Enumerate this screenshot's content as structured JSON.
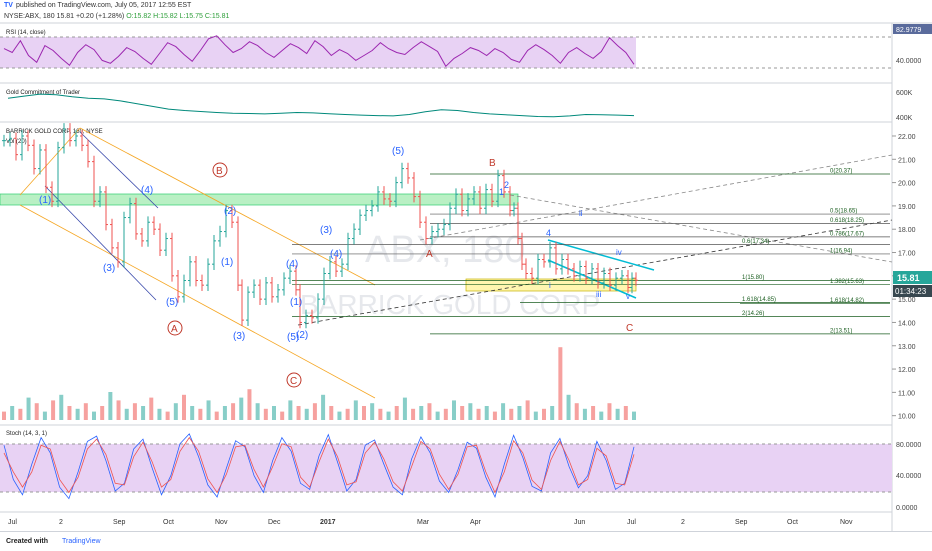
{
  "header": {
    "publish_text": "published on TradingView.com, July 05, 2017 12:55 EST",
    "symbol": "NYSE:ABX, 180",
    "change": "15.81 +0.20 (+1.28%)",
    "ohlc": "O:15.82 H:15.82 L:15.75 C:15.81"
  },
  "footer": {
    "created_with": "Created with",
    "brand": "TradingView"
  },
  "colors": {
    "rsi_fill": "#e8d2f4",
    "rsi_line": "#9c27b0",
    "cot_line": "#00897b",
    "wave_blue": "#2962ff",
    "wave_red": "#c0392b",
    "zone_green": "#b9f0c4",
    "zone_yellow": "#fff6b0",
    "fib_line": "#1b5e20",
    "channel_orange": "#f5a623",
    "channel_blue": "#3949ab",
    "cyan_line": "#00bcd4",
    "price_up": "#26a69a",
    "price_down": "#ef5350"
  },
  "chart_data": [
    {
      "type": "line",
      "title": "RSI (14, close)",
      "ylim": [
        30,
        85
      ],
      "y_ticks": [
        "82.9779",
        "40.0000"
      ],
      "series": [
        {
          "name": "RSI",
          "values": [
            62,
            58,
            70,
            55,
            48,
            65,
            60,
            52,
            45,
            58,
            66,
            61,
            50,
            47,
            54,
            63,
            59,
            52,
            46,
            57,
            68,
            64,
            56,
            49,
            60,
            72,
            75,
            66,
            58,
            62,
            69,
            65,
            58,
            53,
            60,
            67,
            63,
            57,
            70,
            64,
            55,
            61,
            57,
            50,
            55,
            60,
            68,
            62,
            58,
            56,
            63,
            69,
            64,
            59,
            44,
            52,
            57,
            63,
            60,
            55,
            62,
            58,
            51,
            48,
            60,
            66,
            61,
            55,
            47,
            58,
            63,
            57,
            52,
            59,
            73,
            65,
            58,
            46
          ]
        }
      ]
    },
    {
      "type": "line",
      "title": "Gold Commitment of Trader",
      "y_ticks": [
        "600K",
        "400K"
      ],
      "series": [
        {
          "name": "COT",
          "values": [
            560,
            575,
            590,
            585,
            570,
            560,
            555,
            540,
            520,
            500,
            480,
            470,
            462,
            455,
            450,
            448,
            445,
            450,
            455,
            452,
            446,
            440,
            436,
            432,
            430,
            440,
            460,
            475,
            470,
            455,
            445,
            438,
            432,
            426,
            424,
            430,
            440,
            438,
            436,
            432
          ]
        }
      ]
    },
    {
      "type": "line",
      "title": "BARRICK GOLD CORP, 180, NYSE",
      "subtitle": "Vol (20)",
      "ylim": [
        9.6,
        22.6
      ],
      "y_ticks": [
        "22.00",
        "21.00",
        "20.00",
        "19.00",
        "18.00",
        "17.00",
        "16.00",
        "15.00",
        "14.00",
        "13.00",
        "12.00",
        "11.00",
        "10.00"
      ],
      "last_price": "15.81",
      "countdown": "01:34:23",
      "watermark_symbol": "ABX, 180",
      "watermark_name": "BARRICK GOLD CORP",
      "x_labels": [
        "Jul",
        "2",
        "Sep",
        "Oct",
        "Nov",
        "Dec",
        "2017",
        "Mar",
        "Apr",
        "Jun",
        "Jul",
        "2",
        "Sep",
        "Oct",
        "Nov"
      ],
      "series": [
        {
          "name": "price",
          "values": [
            [
              0,
              21.8
            ],
            [
              6,
              21.9
            ],
            [
              12,
              21.2
            ],
            [
              18,
              22.0
            ],
            [
              24,
              21.6
            ],
            [
              30,
              20.6
            ],
            [
              36,
              21.4
            ],
            [
              42,
              19.8
            ],
            [
              48,
              19.2
            ],
            [
              54,
              21.5
            ],
            [
              60,
              22.3
            ],
            [
              66,
              21.8
            ],
            [
              72,
              22.0
            ],
            [
              78,
              21.6
            ],
            [
              84,
              20.9
            ],
            [
              90,
              19.2
            ],
            [
              96,
              19.6
            ],
            [
              102,
              18.2
            ],
            [
              108,
              17.2
            ],
            [
              114,
              16.6
            ],
            [
              120,
              18.5
            ],
            [
              126,
              19.1
            ],
            [
              132,
              17.8
            ],
            [
              138,
              17.5
            ],
            [
              144,
              18.3
            ],
            [
              150,
              18.0
            ],
            [
              156,
              17.1
            ],
            [
              162,
              17.6
            ],
            [
              168,
              16.0
            ],
            [
              174,
              15.1
            ],
            [
              180,
              15.8
            ],
            [
              186,
              16.6
            ],
            [
              192,
              15.8
            ],
            [
              198,
              15.6
            ],
            [
              204,
              16.5
            ],
            [
              210,
              17.5
            ],
            [
              216,
              17.9
            ],
            [
              222,
              18.8
            ],
            [
              228,
              18.3
            ],
            [
              234,
              15.6
            ],
            [
              238,
              14.1
            ],
            [
              244,
              15.3
            ],
            [
              250,
              15.6
            ],
            [
              256,
              15.0
            ],
            [
              262,
              15.7
            ],
            [
              268,
              15.1
            ],
            [
              274,
              15.4
            ],
            [
              280,
              15.9
            ],
            [
              286,
              16.2
            ],
            [
              292,
              15.4
            ],
            [
              296,
              14.0
            ],
            [
              302,
              14.3
            ],
            [
              308,
              14.2
            ],
            [
              314,
              15.0
            ],
            [
              320,
              16.1
            ],
            [
              326,
              16.6
            ],
            [
              332,
              16.2
            ],
            [
              338,
              16.5
            ],
            [
              344,
              17.6
            ],
            [
              350,
              18.0
            ],
            [
              356,
              18.6
            ],
            [
              362,
              18.8
            ],
            [
              368,
              19.0
            ],
            [
              374,
              19.6
            ],
            [
              380,
              19.3
            ],
            [
              386,
              19.2
            ],
            [
              392,
              20.0
            ],
            [
              398,
              20.6
            ],
            [
              404,
              20.2
            ],
            [
              410,
              19.4
            ],
            [
              416,
              18.3
            ],
            [
              422,
              17.6
            ],
            [
              428,
              17.9
            ],
            [
              434,
              18.0
            ],
            [
              440,
              18.2
            ],
            [
              446,
              18.9
            ],
            [
              452,
              19.5
            ],
            [
              458,
              18.8
            ],
            [
              464,
              19.3
            ],
            [
              470,
              19.6
            ],
            [
              476,
              18.9
            ],
            [
              482,
              19.7
            ],
            [
              488,
              19.2
            ],
            [
              494,
              20.3
            ],
            [
              500,
              19.6
            ],
            [
              506,
              18.8
            ],
            [
              510,
              18.9
            ],
            [
              514,
              17.6
            ],
            [
              518,
              16.5
            ],
            [
              522,
              16.1
            ],
            [
              528,
              15.9
            ],
            [
              534,
              16.7
            ],
            [
              540,
              16.6
            ],
            [
              546,
              17.2
            ],
            [
              552,
              16.3
            ],
            [
              558,
              16.7
            ],
            [
              564,
              16.3
            ],
            [
              570,
              16.0
            ],
            [
              576,
              16.4
            ],
            [
              582,
              15.9
            ],
            [
              588,
              16.3
            ],
            [
              594,
              15.7
            ],
            [
              600,
              16.1
            ],
            [
              606,
              15.6
            ],
            [
              612,
              15.9
            ],
            [
              618,
              16.0
            ],
            [
              624,
              15.5
            ],
            [
              628,
              15.9
            ],
            [
              632,
              15.81
            ]
          ]
        }
      ],
      "levels": [
        {
          "label": "0(20.37)",
          "value": 20.37
        },
        {
          "label": "0.5(18.65)",
          "value": 18.65
        },
        {
          "label": "0.618(18.25)",
          "value": 18.25
        },
        {
          "label": "0.786(17.67)",
          "value": 17.67
        },
        {
          "label": "0.6(17.34)",
          "value": 17.34
        },
        {
          "label": "1(16.94)",
          "value": 16.94
        },
        {
          "label": "1(15.80)",
          "value": 15.8
        },
        {
          "label": "1.382(15.63)",
          "value": 15.63
        },
        {
          "label": "1.618(14.85)",
          "value": 14.85
        },
        {
          "label": "1.618(14.82)",
          "value": 14.82
        },
        {
          "label": "2(14.26)",
          "value": 14.26
        },
        {
          "label": "2(13.51)",
          "value": 13.51
        }
      ],
      "wave_labels": [
        "(1)",
        "(2)",
        "(3)",
        "(4)",
        "(5)",
        "(1)",
        "(2)",
        "(3)",
        "(4)",
        "(5)",
        "(1)",
        "(2)",
        "(3)",
        "(4)",
        "(5)",
        "1",
        "2",
        "3",
        "4",
        "5",
        "i",
        "ii",
        "iii",
        "iv",
        "v",
        "A",
        "B",
        "C",
        "A",
        "B",
        "C"
      ]
    },
    {
      "type": "bar",
      "title": "Vol (20)",
      "values": [
        0.3,
        0.5,
        0.4,
        0.8,
        0.6,
        0.3,
        0.7,
        0.9,
        0.5,
        0.4,
        0.6,
        0.3,
        0.5,
        1.0,
        0.7,
        0.4,
        0.6,
        0.5,
        0.8,
        0.4,
        0.3,
        0.6,
        0.9,
        0.5,
        0.4,
        0.7,
        0.3,
        0.5,
        0.6,
        0.8,
        1.1,
        0.6,
        0.4,
        0.5,
        0.3,
        0.7,
        0.5,
        0.4,
        0.6,
        0.9,
        0.5,
        0.3,
        0.4,
        0.7,
        0.5,
        0.6,
        0.4,
        0.3,
        0.5,
        0.8,
        0.4,
        0.5,
        0.6,
        0.3,
        0.4,
        0.7,
        0.5,
        0.6,
        0.4,
        0.5,
        0.3,
        0.6,
        0.4,
        0.5,
        0.7,
        0.3,
        0.4,
        0.5,
        2.6,
        0.9,
        0.6,
        0.4,
        0.5,
        0.3,
        0.6,
        0.4,
        0.5,
        0.3
      ]
    },
    {
      "type": "line",
      "title": "Stoch (14, 3, 1)",
      "ylim": [
        -5,
        100
      ],
      "y_ticks": [
        "80.0000",
        "40.0000",
        "0.0000"
      ],
      "series": [
        {
          "name": "K",
          "values": [
            80,
            35,
            15,
            55,
            90,
            70,
            25,
            10,
            45,
            85,
            92,
            60,
            20,
            30,
            75,
            88,
            50,
            15,
            40,
            82,
            95,
            65,
            28,
            12,
            50,
            86,
            78,
            40,
            18,
            60,
            90,
            72,
            30,
            22,
            66,
            94,
            58,
            20,
            35,
            80,
            87,
            55,
            25,
            15,
            62,
            91,
            70,
            33,
            18,
            48,
            84,
            76,
            38,
            12,
            55,
            93,
            64,
            26,
            20,
            70,
            89,
            52,
            24,
            40,
            85,
            60,
            22,
            30,
            78
          ]
        },
        {
          "name": "D",
          "values": [
            70,
            45,
            25,
            45,
            80,
            75,
            35,
            18,
            38,
            75,
            88,
            68,
            30,
            28,
            65,
            84,
            58,
            25,
            35,
            72,
            90,
            72,
            36,
            18,
            42,
            78,
            80,
            48,
            25,
            52,
            82,
            78,
            38,
            25,
            58,
            88,
            65,
            28,
            32,
            70,
            84,
            62,
            32,
            20,
            52,
            85,
            75,
            42,
            22,
            42,
            78,
            80,
            45,
            18,
            45,
            86,
            70,
            34,
            22,
            60,
            85,
            60,
            28,
            35,
            76,
            66,
            30,
            28,
            68
          ]
        }
      ]
    }
  ]
}
